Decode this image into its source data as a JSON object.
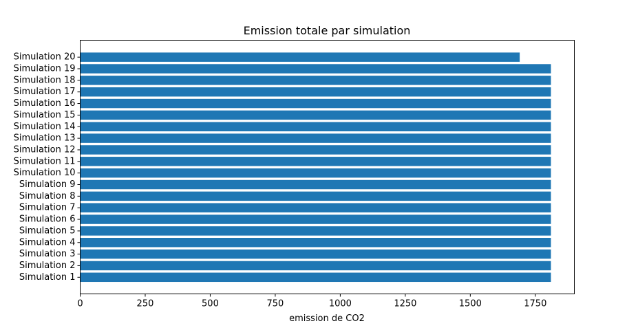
{
  "chart_data": {
    "type": "bar",
    "orientation": "horizontal",
    "title": "Emission totale par simulation",
    "xlabel": "emission de CO2",
    "ylabel": "",
    "xlim": [
      0,
      1900
    ],
    "xticks": [
      0,
      250,
      500,
      750,
      1000,
      1250,
      1500,
      1750
    ],
    "grid": false,
    "bar_color": "#1f77b4",
    "categories": [
      "Simulation 1",
      "Simulation 2",
      "Simulation 3",
      "Simulation 4",
      "Simulation 5",
      "Simulation 6",
      "Simulation 7",
      "Simulation 8",
      "Simulation 9",
      "Simulation 10",
      "Simulation 11",
      "Simulation 12",
      "Simulation 13",
      "Simulation 14",
      "Simulation 15",
      "Simulation 16",
      "Simulation 17",
      "Simulation 18",
      "Simulation 19",
      "Simulation 20"
    ],
    "values": [
      1810,
      1810,
      1810,
      1810,
      1810,
      1810,
      1810,
      1810,
      1810,
      1810,
      1810,
      1810,
      1810,
      1810,
      1810,
      1810,
      1810,
      1810,
      1810,
      1690
    ]
  }
}
